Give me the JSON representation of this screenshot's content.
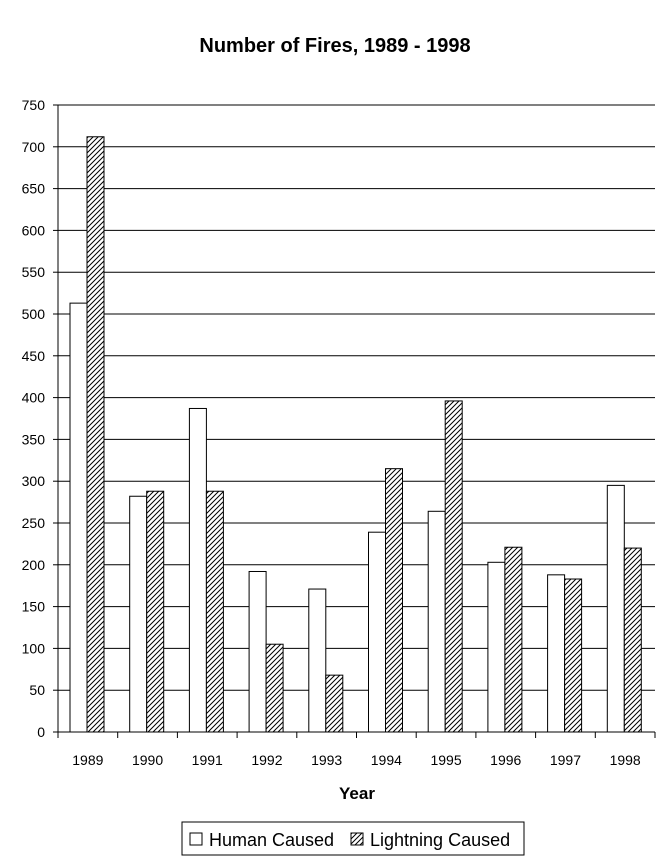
{
  "chart_data": {
    "type": "bar",
    "title": "Number of Fires, 1989 - 1998",
    "xlabel": "Year",
    "ylabel": "",
    "ylim": [
      0,
      750
    ],
    "yticks": [
      0,
      50,
      100,
      150,
      200,
      250,
      300,
      350,
      400,
      450,
      500,
      550,
      600,
      650,
      700,
      750
    ],
    "categories": [
      "1989",
      "1990",
      "1991",
      "1992",
      "1993",
      "1994",
      "1995",
      "1996",
      "1997",
      "1998"
    ],
    "series": [
      {
        "name": "Human Caused",
        "fill": "white",
        "values": [
          513,
          282,
          387,
          192,
          171,
          239,
          264,
          203,
          188,
          295
        ]
      },
      {
        "name": "Lightning Caused",
        "fill": "hatch",
        "values": [
          712,
          288,
          288,
          105,
          68,
          315,
          396,
          221,
          183,
          220
        ]
      }
    ],
    "grid": true,
    "legend_position": "bottom-center",
    "colors": {
      "background": "#ffffff",
      "bars_outline": "#000000",
      "hatch": "#000000"
    }
  }
}
